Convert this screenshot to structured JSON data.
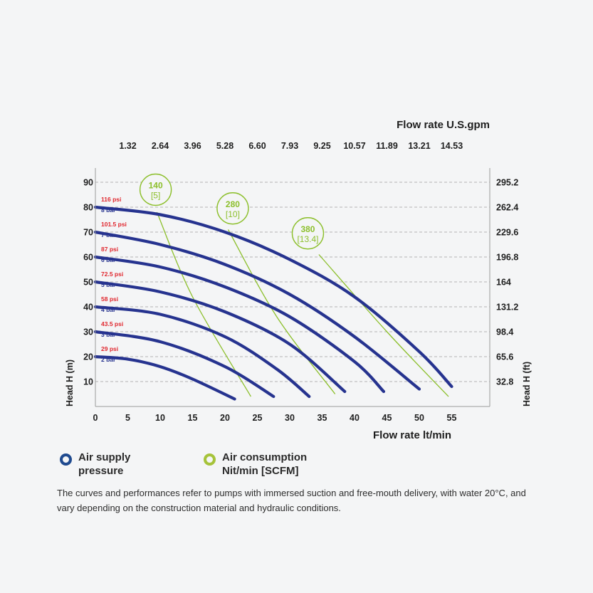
{
  "chart_data": {
    "type": "line",
    "x_axis": {
      "label": "Flow rate lt/min",
      "ticks": [
        "0",
        "5",
        "10",
        "15",
        "20",
        "25",
        "30",
        "35",
        "40",
        "45",
        "50",
        "55"
      ],
      "range": [
        0,
        60
      ]
    },
    "top_axis": {
      "label": "Flow rate U.S.gpm",
      "ticks": [
        {
          "value": 5,
          "label": "1.32"
        },
        {
          "value": 10,
          "label": "2.64"
        },
        {
          "value": 15,
          "label": "3.96"
        },
        {
          "value": 20,
          "label": "5.28"
        },
        {
          "value": 25,
          "label": "6.60"
        },
        {
          "value": 30,
          "label": "7.93"
        },
        {
          "value": 35,
          "label": "9.25"
        },
        {
          "value": 40,
          "label": "10.57"
        },
        {
          "value": 45,
          "label": "11.89"
        },
        {
          "value": 50,
          "label": "13.21"
        },
        {
          "value": 55,
          "label": "14.53"
        }
      ]
    },
    "y_axis": {
      "label": "Head H (m)",
      "ticks": [
        "10",
        "20",
        "30",
        "40",
        "50",
        "60",
        "70",
        "80",
        "90"
      ],
      "range": [
        0,
        90
      ]
    },
    "right_axis": {
      "label": "Head H (ft)",
      "ticks": [
        {
          "value": 10,
          "label": "32.8"
        },
        {
          "value": 20,
          "label": "65.6"
        },
        {
          "value": 30,
          "label": "98.4"
        },
        {
          "value": 40,
          "label": "131.2"
        },
        {
          "value": 50,
          "label": "164"
        },
        {
          "value": 60,
          "label": "196.8"
        },
        {
          "value": 70,
          "label": "229.6"
        },
        {
          "value": 80,
          "label": "262.4"
        },
        {
          "value": 90,
          "label": "295.2"
        }
      ]
    },
    "grid": "dashed horizontal",
    "series": [
      {
        "name": "8 bar",
        "psi": "116 psi",
        "x": [
          0,
          10,
          20,
          30,
          40,
          50,
          55
        ],
        "y": [
          80,
          77,
          70,
          59,
          44,
          22,
          8
        ]
      },
      {
        "name": "7 bar",
        "psi": "101.5 psi",
        "x": [
          0,
          10,
          20,
          30,
          40,
          50
        ],
        "y": [
          70,
          65,
          57,
          45,
          28,
          7
        ]
      },
      {
        "name": "6 bar",
        "psi": "87 psi",
        "x": [
          0,
          10,
          20,
          30,
          40,
          44.5
        ],
        "y": [
          60,
          56,
          48,
          36,
          18,
          6
        ]
      },
      {
        "name": "5 bar",
        "psi": "72.5 psi",
        "x": [
          0,
          10,
          20,
          30,
          38.5
        ],
        "y": [
          50,
          46,
          38,
          25,
          6
        ]
      },
      {
        "name": "4 bar",
        "psi": "58 psi",
        "x": [
          0,
          10,
          20,
          28,
          33
        ],
        "y": [
          40,
          37,
          28,
          15,
          4
        ]
      },
      {
        "name": "3 bar",
        "psi": "43.5 psi",
        "x": [
          0,
          10,
          20,
          27.5
        ],
        "y": [
          30,
          26,
          16,
          4
        ]
      },
      {
        "name": "2 bar",
        "psi": "29 psi",
        "x": [
          0,
          5,
          10,
          15,
          21.5
        ],
        "y": [
          20,
          19,
          16,
          11,
          3
        ]
      }
    ],
    "air_consumption": [
      {
        "label": "140",
        "sub": "[5]",
        "x": [
          9.5,
          15,
          24
        ],
        "y": [
          78,
          44,
          4
        ]
      },
      {
        "label": "280",
        "sub": "[10]",
        "x": [
          20.5,
          28,
          37
        ],
        "y": [
          71,
          36,
          5
        ]
      },
      {
        "label": "380",
        "sub": "[13.4]",
        "x": [
          34.5,
          45,
          54.5
        ],
        "y": [
          61,
          30,
          4
        ]
      }
    ],
    "bubbles": [
      {
        "x": 9.3,
        "y": 87
      },
      {
        "x": 21.2,
        "y": 79.5
      },
      {
        "x": 32.8,
        "y": 69.5
      }
    ]
  },
  "colors": {
    "pressure": "#26338f",
    "air": "#8cbf2b",
    "psi_text": "#e0262d"
  },
  "legend": [
    {
      "icon": "blue-ring-icon",
      "line1": "Air supply",
      "line2": "pressure"
    },
    {
      "icon": "green-ring-icon",
      "line1": "Air consumption",
      "line2": "Nit/min [SCFM]"
    }
  ],
  "note": "The curves and performances refer to pumps with immersed suction and free-mouth delivery, with water 20°C, and vary depending on the construction material and hydraulic conditions."
}
